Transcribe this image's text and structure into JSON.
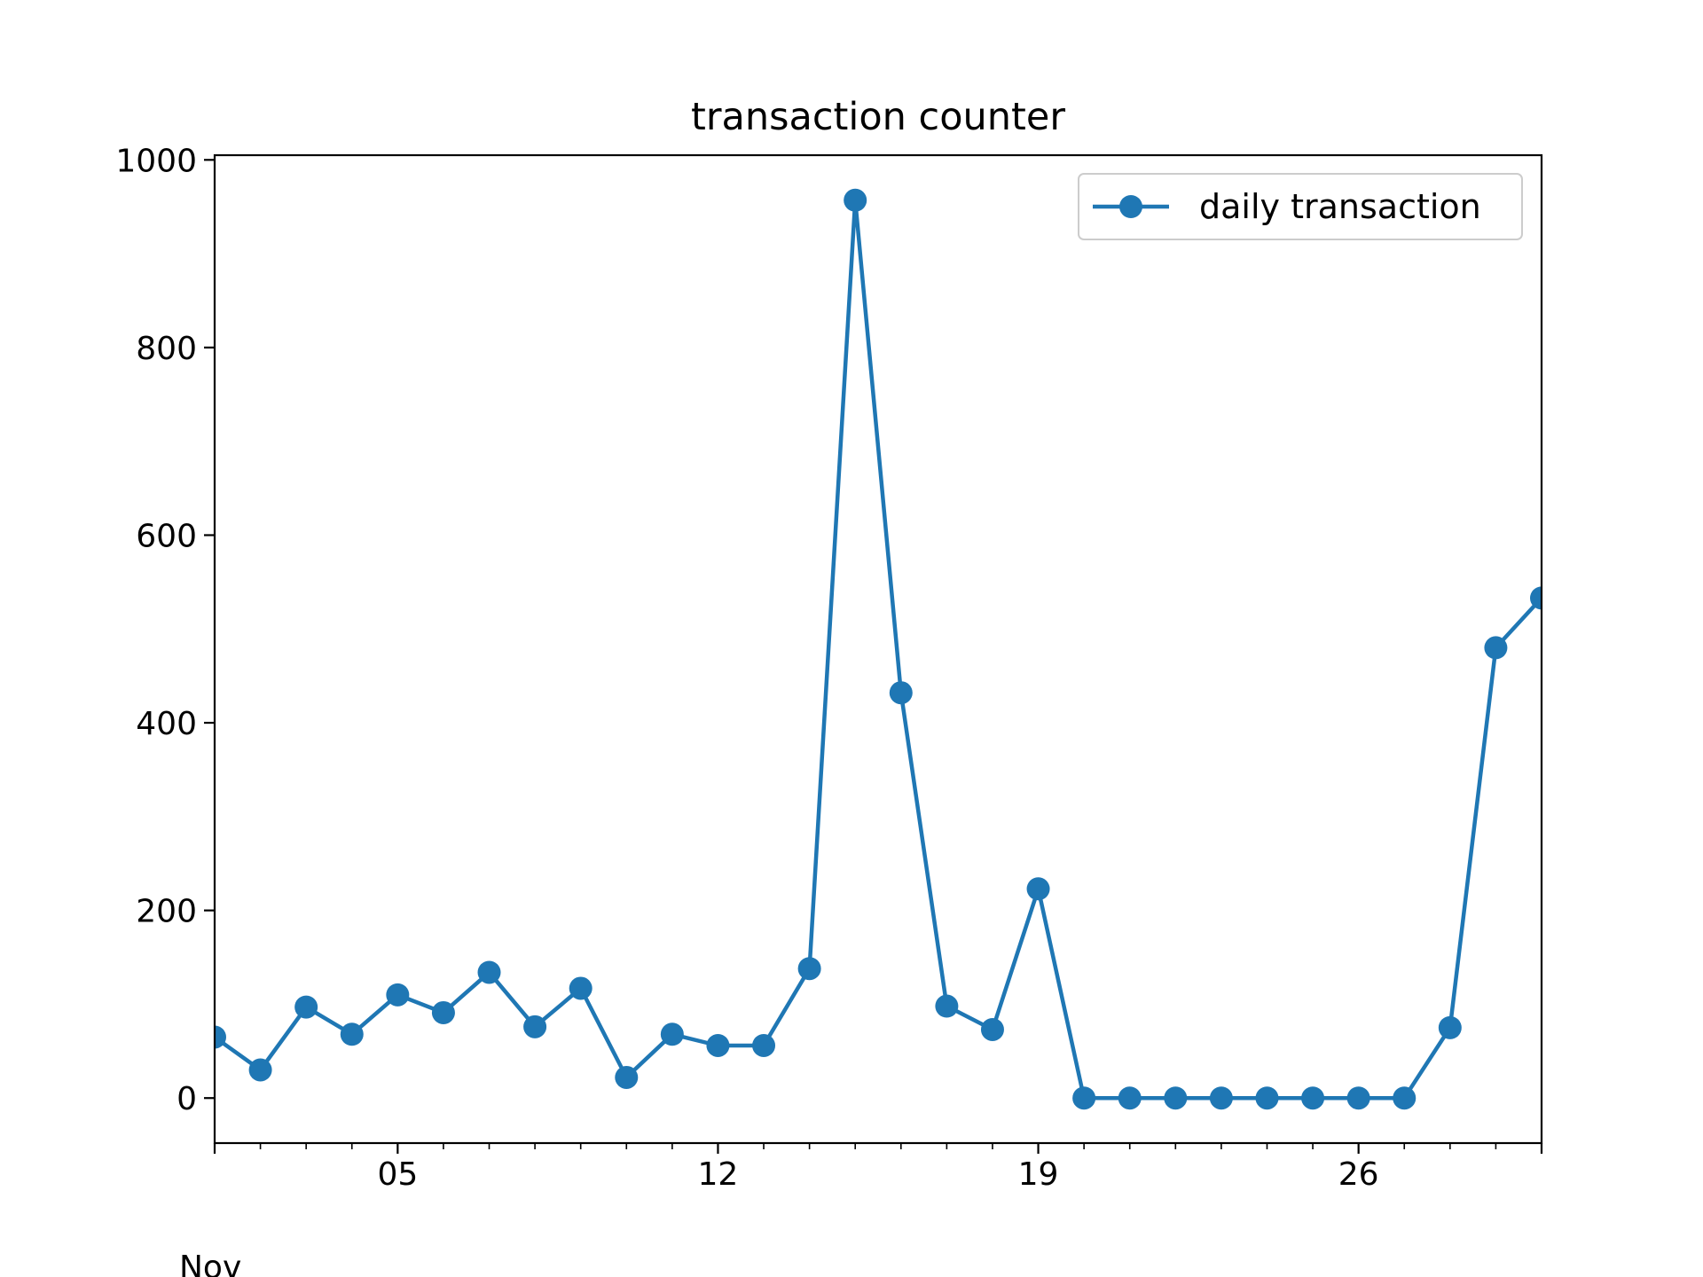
{
  "chart_data": {
    "type": "line",
    "title": "transaction counter",
    "xlabel": "",
    "ylabel": "",
    "x": [
      "2018-11-01",
      "2018-11-02",
      "2018-11-03",
      "2018-11-04",
      "2018-11-05",
      "2018-11-06",
      "2018-11-07",
      "2018-11-08",
      "2018-11-09",
      "2018-11-10",
      "2018-11-11",
      "2018-11-12",
      "2018-11-13",
      "2018-11-14",
      "2018-11-15",
      "2018-11-16",
      "2018-11-17",
      "2018-11-18",
      "2018-11-19",
      "2018-11-20",
      "2018-11-21",
      "2018-11-22",
      "2018-11-23",
      "2018-11-24",
      "2018-11-25",
      "2018-11-26",
      "2018-11-27",
      "2018-11-28",
      "2018-11-29",
      "2018-11-30"
    ],
    "series": [
      {
        "name": "daily transaction",
        "color": "#1f77b4",
        "values": [
          65,
          30,
          97,
          68,
          110,
          91,
          134,
          76,
          117,
          22,
          68,
          56,
          56,
          138,
          957,
          432,
          98,
          73,
          223,
          0,
          0,
          0,
          0,
          0,
          0,
          0,
          0,
          75,
          480,
          533
        ]
      }
    ],
    "xlim": [
      "2018-11-01",
      "2018-11-30"
    ],
    "ylim": [
      -48,
      1005
    ],
    "yticks": [
      0,
      200,
      400,
      600,
      800,
      1000
    ],
    "xticks_major": [
      {
        "date": "2018-11-05",
        "label": "05"
      },
      {
        "date": "2018-11-12",
        "label": "12"
      },
      {
        "date": "2018-11-19",
        "label": "19"
      },
      {
        "date": "2018-11-26",
        "label": "26"
      }
    ],
    "x_offset_label": "Nov",
    "legend": "top-right",
    "grid": false
  }
}
